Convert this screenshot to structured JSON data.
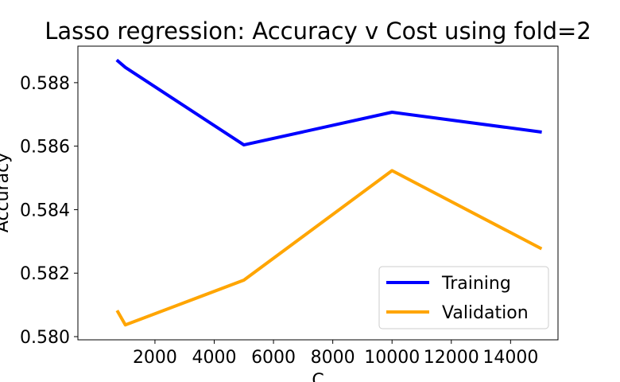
{
  "chart_data": {
    "type": "line",
    "title": "Lasso regression: Accuracy v Cost using fold=2",
    "xlabel": "C",
    "ylabel": "Accuracy",
    "x": [
      750,
      1000,
      5000,
      10000,
      15000
    ],
    "xlim": [
      -600,
      15600
    ],
    "ylim": [
      0.5799,
      0.58915
    ],
    "xticks": [
      2000,
      4000,
      6000,
      8000,
      10000,
      12000,
      14000
    ],
    "xtick_labels": [
      "2000",
      "4000",
      "6000",
      "8000",
      "10000",
      "12000",
      "14000"
    ],
    "yticks": [
      0.58,
      0.582,
      0.584,
      0.586,
      0.588
    ],
    "ytick_labels": [
      "0.580",
      "0.582",
      "0.584",
      "0.586",
      "0.588"
    ],
    "grid": false,
    "legend_position": "lower-right",
    "series": [
      {
        "name": "Training",
        "color": "#0000ff",
        "values": [
          0.58868,
          0.58848,
          0.58604,
          0.58707,
          0.58645
        ]
      },
      {
        "name": "Validation",
        "color": "#ffa500",
        "values": [
          0.58078,
          0.58037,
          0.58178,
          0.58523,
          0.58279
        ]
      }
    ]
  }
}
